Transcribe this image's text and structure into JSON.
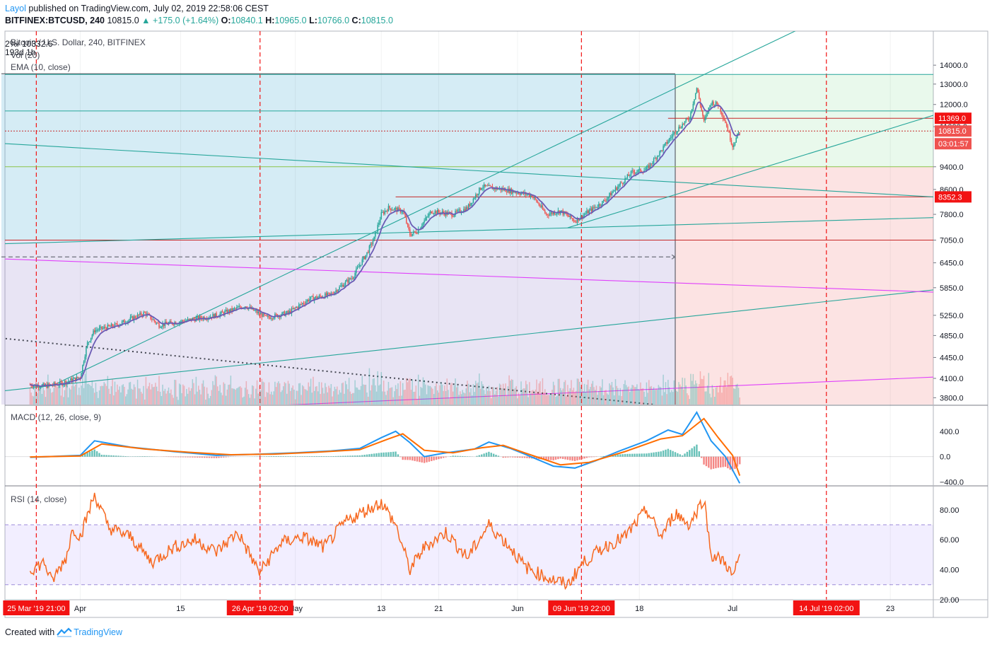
{
  "header": {
    "author": "Layol",
    "published_text": " published on TradingView.com, July 02, 2019 22:58:06 CEST",
    "symbol": "BITFINEX:BTCUSD, 240",
    "last": "10815.0",
    "change": "+175.0 (+1.64%)",
    "o_label": "O:",
    "o_value": "10840.1",
    "h_label": "H:",
    "h_value": "10965.0",
    "l_label": "L:",
    "l_value": "10766.0",
    "c_label": "C:",
    "c_value": "10815.0"
  },
  "legends": {
    "main_title": "Bitcoin / U.S. Dollar, 240, BITFINEX",
    "range_overlay": "2%/ 10332.6",
    "bars_overlay": "193d 1h",
    "vol": "Vol (20)",
    "ema": "EMA (10, close)",
    "macd": "MACD (12, 26, close, 9)",
    "rsi": "RSI (14, close)"
  },
  "footer": {
    "created_with": "Created with",
    "brand": "TradingView"
  },
  "colors": {
    "up": "#26a69a",
    "down": "#ef5350",
    "ema": "#6b5bb5",
    "macd": "#2196f3",
    "signal": "#ff6d00",
    "rsi": "#f7681f",
    "magenta": "#e040fb",
    "teal": "#26a69a",
    "red_line": "#c62828",
    "tag_red": "#f21313"
  },
  "chart_data": [
    {
      "type": "candlestick",
      "title": "Bitcoin / U.S. Dollar, 240, BITFINEX",
      "y_ticks": [
        14000.0,
        13000.0,
        12000.0,
        11000.0,
        9400.0,
        8600.0,
        7800.0,
        7050.0,
        6450.0,
        5850.0,
        5250.0,
        4850.0,
        4450.0,
        4100.0,
        3800.0
      ],
      "y_labels": [
        "14000.0",
        "13000.0",
        "12000.0",
        "11000.0",
        "9400.0",
        "8600.0",
        "7800.0",
        "7050.0",
        "6450.0",
        "5850.0",
        "5250.0",
        "4850.0",
        "4450.0",
        "4100.0",
        "3800.0"
      ],
      "price_tags": [
        {
          "label": "11369.0",
          "value": 11369.0
        },
        {
          "label": "10815.0",
          "value": 10815.0
        },
        {
          "label": "03:01:57",
          "value": 10500.0
        },
        {
          "label": "8352.3",
          "value": 8352.3
        }
      ],
      "path": [
        [
          "2019-03-25",
          4000
        ],
        [
          "2019-03-27",
          3980
        ],
        [
          "2019-03-29",
          4010
        ],
        [
          "2019-03-31",
          4080
        ],
        [
          "2019-04-01",
          4120
        ],
        [
          "2019-04-02",
          4700
        ],
        [
          "2019-04-03",
          4950
        ],
        [
          "2019-04-06",
          5050
        ],
        [
          "2019-04-10",
          5300
        ],
        [
          "2019-04-12",
          5050
        ],
        [
          "2019-04-16",
          5150
        ],
        [
          "2019-04-20",
          5250
        ],
        [
          "2019-04-24",
          5450
        ],
        [
          "2019-04-27",
          5200
        ],
        [
          "2019-04-30",
          5300
        ],
        [
          "2019-05-03",
          5600
        ],
        [
          "2019-05-06",
          5700
        ],
        [
          "2019-05-09",
          6100
        ],
        [
          "2019-05-11",
          6700
        ],
        [
          "2019-05-12",
          7100
        ],
        [
          "2019-05-13",
          7800
        ],
        [
          "2019-05-14",
          8000
        ],
        [
          "2019-05-16",
          7900
        ],
        [
          "2019-05-17",
          7200
        ],
        [
          "2019-05-18",
          7300
        ],
        [
          "2019-05-20",
          7900
        ],
        [
          "2019-05-23",
          7800
        ],
        [
          "2019-05-25",
          8000
        ],
        [
          "2019-05-27",
          8700
        ],
        [
          "2019-05-30",
          8600
        ],
        [
          "2019-06-01",
          8500
        ],
        [
          "2019-06-03",
          8400
        ],
        [
          "2019-06-05",
          7800
        ],
        [
          "2019-06-07",
          7900
        ],
        [
          "2019-06-09",
          7600
        ],
        [
          "2019-06-11",
          7900
        ],
        [
          "2019-06-13",
          8200
        ],
        [
          "2019-06-15",
          8700
        ],
        [
          "2019-06-17",
          9200
        ],
        [
          "2019-06-19",
          9300
        ],
        [
          "2019-06-21",
          10000
        ],
        [
          "2019-06-23",
          10800
        ],
        [
          "2019-06-25",
          11400
        ],
        [
          "2019-06-26",
          12800
        ],
        [
          "2019-06-27",
          11200
        ],
        [
          "2019-06-28",
          12100
        ],
        [
          "2019-06-29",
          12000
        ],
        [
          "2019-06-30",
          11200
        ],
        [
          "2019-07-01",
          10200
        ],
        [
          "2019-07-02",
          10815
        ]
      ],
      "y_scale": "log",
      "y_range": [
        3700,
        16000
      ]
    },
    {
      "type": "line",
      "title": "MACD (12, 26, close, 9)",
      "y_ticks": [
        400.0,
        0.0,
        -400.0
      ],
      "y_labels": [
        "400.0",
        "0.0",
        "−400.0"
      ],
      "y_range": [
        -450,
        800
      ],
      "macd": [
        [
          "2019-03-25",
          -10
        ],
        [
          "2019-04-01",
          20
        ],
        [
          "2019-04-03",
          250
        ],
        [
          "2019-04-08",
          150
        ],
        [
          "2019-04-14",
          80
        ],
        [
          "2019-04-20",
          20
        ],
        [
          "2019-04-26",
          40
        ],
        [
          "2019-05-01",
          60
        ],
        [
          "2019-05-06",
          90
        ],
        [
          "2019-05-10",
          130
        ],
        [
          "2019-05-13",
          300
        ],
        [
          "2019-05-15",
          400
        ],
        [
          "2019-05-17",
          220
        ],
        [
          "2019-05-19",
          0
        ],
        [
          "2019-05-22",
          60
        ],
        [
          "2019-05-26",
          120
        ],
        [
          "2019-05-28",
          230
        ],
        [
          "2019-05-31",
          130
        ],
        [
          "2019-06-02",
          40
        ],
        [
          "2019-06-06",
          -150
        ],
        [
          "2019-06-09",
          -180
        ],
        [
          "2019-06-12",
          -60
        ],
        [
          "2019-06-15",
          80
        ],
        [
          "2019-06-19",
          250
        ],
        [
          "2019-06-22",
          420
        ],
        [
          "2019-06-24",
          350
        ],
        [
          "2019-06-26",
          700
        ],
        [
          "2019-06-28",
          250
        ],
        [
          "2019-06-30",
          0
        ],
        [
          "2019-07-02",
          -420
        ]
      ],
      "signal": [
        [
          "2019-03-25",
          -5
        ],
        [
          "2019-04-01",
          10
        ],
        [
          "2019-04-04",
          200
        ],
        [
          "2019-04-10",
          120
        ],
        [
          "2019-04-16",
          70
        ],
        [
          "2019-04-22",
          30
        ],
        [
          "2019-04-28",
          40
        ],
        [
          "2019-05-04",
          70
        ],
        [
          "2019-05-10",
          110
        ],
        [
          "2019-05-14",
          280
        ],
        [
          "2019-05-16",
          360
        ],
        [
          "2019-05-19",
          100
        ],
        [
          "2019-05-23",
          60
        ],
        [
          "2019-05-27",
          140
        ],
        [
          "2019-05-30",
          180
        ],
        [
          "2019-06-02",
          60
        ],
        [
          "2019-06-07",
          -130
        ],
        [
          "2019-06-11",
          -90
        ],
        [
          "2019-06-16",
          80
        ],
        [
          "2019-06-21",
          280
        ],
        [
          "2019-06-24",
          330
        ],
        [
          "2019-06-27",
          600
        ],
        [
          "2019-06-29",
          300
        ],
        [
          "2019-07-01",
          20
        ],
        [
          "2019-07-02",
          -300
        ]
      ]
    },
    {
      "type": "line",
      "title": "RSI (14, close)",
      "y_ticks": [
        80.0,
        60.0,
        40.0,
        20.0
      ],
      "y_labels": [
        "80.00",
        "60.00",
        "40.00",
        "20.00"
      ],
      "y_range": [
        20,
        95
      ],
      "band": [
        30,
        70
      ],
      "rsi": [
        [
          "2019-03-25",
          40
        ],
        [
          "2019-03-27",
          45
        ],
        [
          "2019-03-28",
          32
        ],
        [
          "2019-03-30",
          48
        ],
        [
          "2019-03-31",
          68
        ],
        [
          "2019-04-01",
          62
        ],
        [
          "2019-04-03",
          90
        ],
        [
          "2019-04-05",
          68
        ],
        [
          "2019-04-08",
          62
        ],
        [
          "2019-04-11",
          45
        ],
        [
          "2019-04-14",
          55
        ],
        [
          "2019-04-17",
          60
        ],
        [
          "2019-04-20",
          52
        ],
        [
          "2019-04-23",
          65
        ],
        [
          "2019-04-26",
          38
        ],
        [
          "2019-04-29",
          58
        ],
        [
          "2019-05-02",
          62
        ],
        [
          "2019-05-05",
          55
        ],
        [
          "2019-05-08",
          72
        ],
        [
          "2019-05-11",
          80
        ],
        [
          "2019-05-13",
          85
        ],
        [
          "2019-05-15",
          70
        ],
        [
          "2019-05-17",
          40
        ],
        [
          "2019-05-19",
          55
        ],
        [
          "2019-05-22",
          65
        ],
        [
          "2019-05-25",
          48
        ],
        [
          "2019-05-28",
          70
        ],
        [
          "2019-05-31",
          55
        ],
        [
          "2019-06-02",
          42
        ],
        [
          "2019-06-05",
          35
        ],
        [
          "2019-06-08",
          30
        ],
        [
          "2019-06-10",
          44
        ],
        [
          "2019-06-13",
          55
        ],
        [
          "2019-06-16",
          62
        ],
        [
          "2019-06-19",
          80
        ],
        [
          "2019-06-21",
          62
        ],
        [
          "2019-06-23",
          78
        ],
        [
          "2019-06-25",
          70
        ],
        [
          "2019-06-27",
          88
        ],
        [
          "2019-06-28",
          50
        ],
        [
          "2019-06-30",
          45
        ],
        [
          "2019-07-01",
          35
        ],
        [
          "2019-07-02",
          48
        ]
      ]
    }
  ],
  "x_axis": {
    "ticks": [
      {
        "label": "Apr",
        "date": "2019-04-01"
      },
      {
        "label": "15",
        "date": "2019-04-15"
      },
      {
        "label": "May",
        "date": "2019-05-01"
      },
      {
        "label": "13",
        "date": "2019-05-13"
      },
      {
        "label": "21",
        "date": "2019-05-21"
      },
      {
        "label": "Jun",
        "date": "2019-06-01"
      },
      {
        "label": "18",
        "date": "2019-06-18"
      },
      {
        "label": "Jul",
        "date": "2019-07-01"
      },
      {
        "label": "23",
        "date": "2019-07-23"
      }
    ],
    "markers": [
      {
        "label": "25 Mar '19   21:00",
        "date": "2019-03-25T21:00"
      },
      {
        "label": "26 Apr '19   02:00",
        "date": "2019-04-26T02:00"
      },
      {
        "label": "09 Jun '19   22:00",
        "date": "2019-06-09T22:00"
      },
      {
        "label": "14 Jul '19   02:00",
        "date": "2019-07-14T02:00"
      }
    ],
    "date_range": [
      "2019-03-21T12:00",
      "2019-07-29T00:00"
    ]
  },
  "drawings": {
    "long_position": {
      "entry_date": "2019-03-21",
      "end_date": "2019-06-23",
      "entry": 7050.0,
      "target": 13500.0,
      "stop": 3650.0
    },
    "projection_box": {
      "start_date": "2019-06-23",
      "end_date": "2019-07-29",
      "entry": 9400.0,
      "target": 13500.0,
      "stop": 3650.0
    },
    "horizontal_lines": [
      {
        "value": 13500,
        "color": "#26a69a"
      },
      {
        "value": 11700,
        "color": "#26a69a"
      },
      {
        "value": 11369,
        "color": "#c62828",
        "start_date": "2019-06-22"
      },
      {
        "value": 10815,
        "color": "#c62828",
        "dotted": true
      },
      {
        "value": 9400,
        "color": "#8bc34a"
      },
      {
        "value": 8352.3,
        "color": "#c62828",
        "start_date": "2019-05-15"
      },
      {
        "value": 7050,
        "color": "#c62828"
      }
    ],
    "dashed_arrow": {
      "value": 6600,
      "start_date": "2019-03-21",
      "end_date": "2019-06-23"
    },
    "trend_lines": [
      {
        "from": [
          "2019-03-21",
          10300
        ],
        "to": [
          "2019-07-29",
          8352
        ],
        "color": "#26a69a"
      },
      {
        "from": [
          "2019-03-28",
          3980
        ],
        "to": [
          "2019-07-12",
          16500
        ],
        "color": "#26a69a"
      },
      {
        "from": [
          "2019-06-08",
          7400
        ],
        "to": [
          "2019-07-29",
          11500
        ],
        "color": "#26a69a"
      },
      {
        "from": [
          "2019-03-21",
          6950
        ],
        "to": [
          "2019-07-29",
          7700
        ],
        "color": "#26a69a"
      },
      {
        "from": [
          "2019-03-21",
          3900
        ],
        "to": [
          "2019-07-29",
          5800
        ],
        "color": "#26a69a"
      },
      {
        "from": [
          "2019-03-21",
          6550
        ],
        "to": [
          "2019-07-29",
          5750
        ],
        "color": "#e040fb"
      },
      {
        "from": [
          "2019-04-20",
          3650
        ],
        "to": [
          "2019-07-29",
          4120
        ],
        "color": "#e040fb"
      },
      {
        "from": [
          "2019-03-21",
          4800
        ],
        "to": [
          "2019-06-20",
          3700
        ],
        "color": "#434651",
        "dotted": true
      }
    ]
  }
}
